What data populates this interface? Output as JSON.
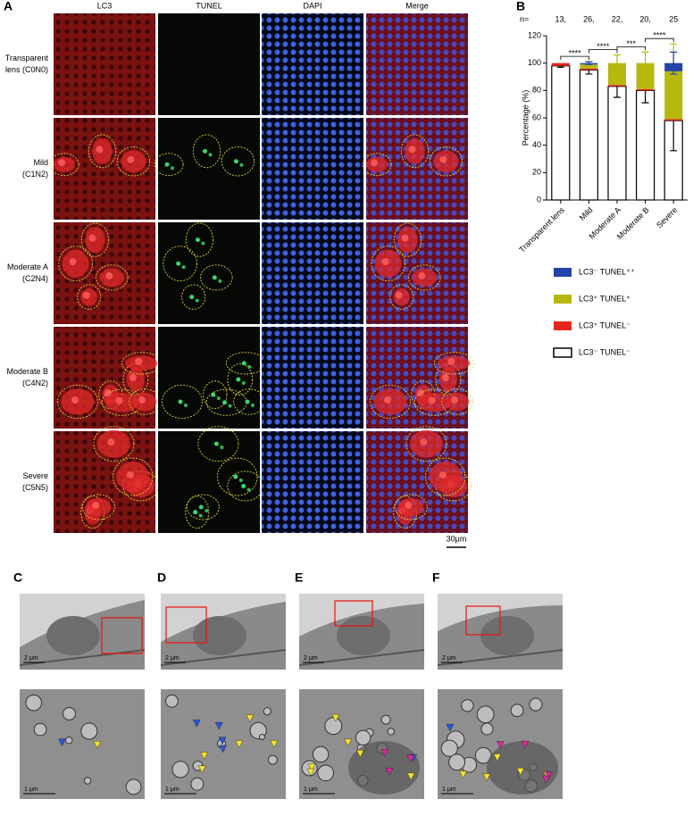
{
  "panel_a": {
    "label": "A",
    "columns": [
      "LC3",
      "TUNEL",
      "DAPI",
      "Merge"
    ],
    "rows": [
      [
        "Transparent",
        "lens (C0N0)"
      ],
      [
        "Mild",
        "(C1N2)"
      ],
      [
        "Moderate A",
        "(C2N4)"
      ],
      [
        "Moderate B",
        "(C4N2)"
      ],
      [
        "Severe",
        "(C5N5)"
      ]
    ],
    "scale_bar": "30μm"
  },
  "panel_b": {
    "label": "B"
  },
  "chart_data": {
    "type": "bar",
    "stacked": true,
    "ylabel": "Percentage (%)",
    "categories": [
      "Transparent lens",
      "Mild",
      "Moderate A",
      "Moderate B",
      "Severe"
    ],
    "ylim": [
      0,
      120
    ],
    "yticks": [
      0,
      20,
      40,
      60,
      80,
      100,
      120
    ],
    "sample_sizes": {
      "label": "n=",
      "values": [
        13,
        26,
        22,
        20,
        25
      ],
      "value_labels": [
        "13,",
        "26,",
        "22,",
        "20,",
        "25"
      ]
    },
    "significance": [
      "****",
      "****",
      "***",
      "****"
    ],
    "series": [
      {
        "name": "LC3⁻ TUNEL⁻",
        "color": "#ffffff",
        "edgecolor": "#000000",
        "values": [
          98,
          95,
          83,
          80,
          58
        ],
        "errors": [
          1,
          3,
          8,
          9,
          22
        ]
      },
      {
        "name": "LC3⁺ TUNEL⁻",
        "color": "#e8261f",
        "values": [
          2,
          1,
          1,
          1,
          1
        ]
      },
      {
        "name": "LC3⁺ TUNEL⁺",
        "color": "#b5b80f",
        "values": [
          0,
          3,
          16,
          19,
          35
        ],
        "errors": [
          0,
          2,
          6,
          8,
          20
        ]
      },
      {
        "name": "LC3⁻ TUNEL⁺⁺",
        "color": "#2444a8",
        "values": [
          0,
          1,
          0,
          0,
          6
        ],
        "errors": [
          0,
          1,
          0,
          0,
          8
        ]
      }
    ]
  },
  "panels_em": [
    {
      "label": "C",
      "overview_scale": "2 μm",
      "detail_scale": "1 μm"
    },
    {
      "label": "D",
      "overview_scale": "2 μm",
      "detail_scale": "1 μm"
    },
    {
      "label": "E",
      "overview_scale": "2 μm",
      "detail_scale": "1 μm"
    },
    {
      "label": "F",
      "overview_scale": "2 μm",
      "detail_scale": "1 μm"
    }
  ]
}
